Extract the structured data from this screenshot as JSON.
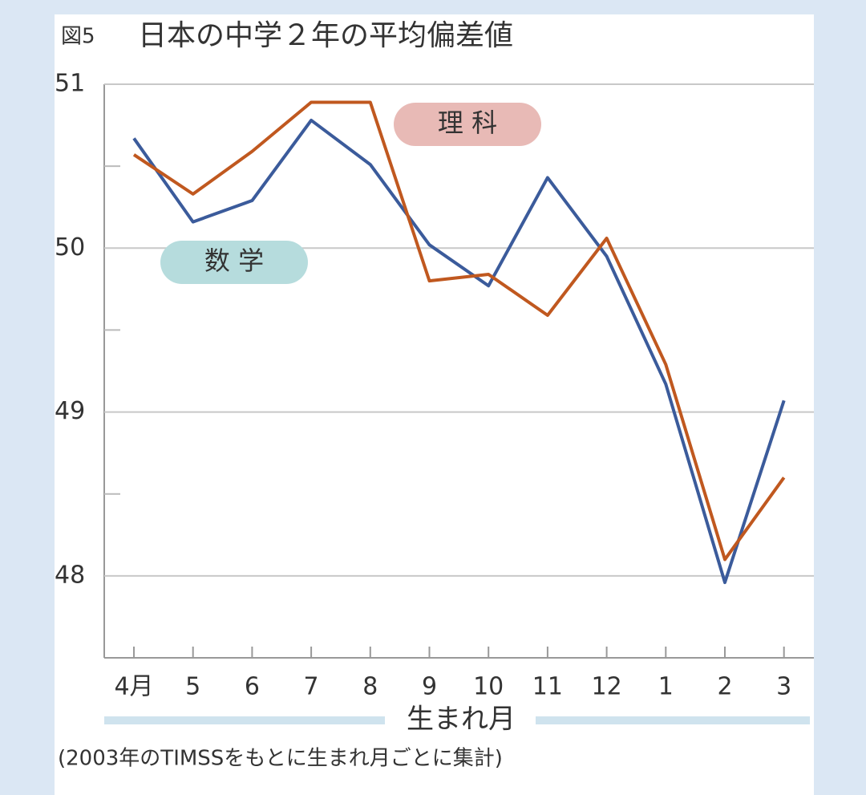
{
  "chart_data": {
    "type": "line",
    "figure_label": "図5",
    "title": "日本の中学２年の平均偏差値",
    "x_label": "生まれ月",
    "note": "(2003年のTIMSSをもとに生まれ月ごとに集計)",
    "categories": [
      "4月",
      "5",
      "6",
      "7",
      "8",
      "9",
      "10",
      "11",
      "12",
      "1",
      "2",
      "3"
    ],
    "series": [
      {
        "name": "数 学",
        "color": "#3b5b9b",
        "label_color": "#b6dcdd",
        "values": [
          50.67,
          50.16,
          50.29,
          50.78,
          50.51,
          50.02,
          49.77,
          50.43,
          49.95,
          49.17,
          47.96,
          49.07
        ]
      },
      {
        "name": "理 科",
        "color": "#c0581f",
        "label_color": "#e8bab6",
        "values": [
          50.57,
          50.33,
          50.59,
          50.89,
          50.89,
          49.8,
          49.84,
          49.59,
          50.06,
          49.29,
          48.1,
          48.6
        ]
      }
    ],
    "ylim": [
      47.5,
      51
    ],
    "yticks": [
      48,
      49,
      50,
      51
    ],
    "yminor": [
      48.5,
      49.5,
      50.5
    ],
    "grid": true
  }
}
